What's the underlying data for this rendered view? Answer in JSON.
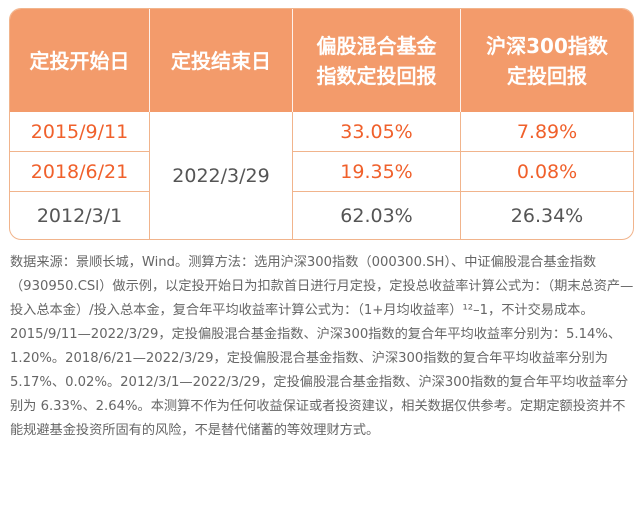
{
  "table": {
    "headers": {
      "start_date": "定投开始日",
      "end_date": "定投结束日",
      "mixed_fund_line1": "偏股混合基金",
      "mixed_fund_line2": "指数定投回报",
      "hs300_line1": "沪深300指数",
      "hs300_line2": "定投回报"
    },
    "end_date_value": "2022/3/29",
    "rows": [
      {
        "start_date": "2015/9/11",
        "mixed_return": "33.05%",
        "hs300_return": "7.89%",
        "highlight": true
      },
      {
        "start_date": "2018/6/21",
        "mixed_return": "19.35%",
        "hs300_return": "0.08%",
        "highlight": true
      },
      {
        "start_date": "2012/3/1",
        "mixed_return": "62.03%",
        "hs300_return": "26.34%",
        "highlight": false
      }
    ]
  },
  "footnote": "数据来源：景顺长城，Wind。测算方法：选用沪深300指数（000300.SH）、中证偏股混合基金指数（930950.CSI）做示例，以定投开始日为扣款首日进行月定投，定投总收益率计算公式为：（期末总资产—投入总本金）/投入总本金，复合年平均收益率计算公式为：（1+月均收益率）¹²–1，不计交易成本。2015/9/11—2022/3/29，定投偏股混合基金指数、沪深300指数的复合年平均收益率分别为：5.14%、1.20%。2018/6/21—2022/3/29，定投偏股混合基金指数、沪深300指数的复合年平均收益率分别为 5.17%、0.02%。2012/3/1—2022/3/29，定投偏股混合基金指数、沪深300指数的复合年平均收益率分别为 6.33%、2.64%。本测算不作为任何收益保证或者投资建议，相关数据仅供参考。定期定额投资并不能规避基金投资所固有的风险，不是替代储蓄的等效理财方式。",
  "colors": {
    "header_bg": "#f39b6b",
    "border": "#f1b48c",
    "highlight_text": "#f0602b",
    "normal_text": "#555555"
  }
}
